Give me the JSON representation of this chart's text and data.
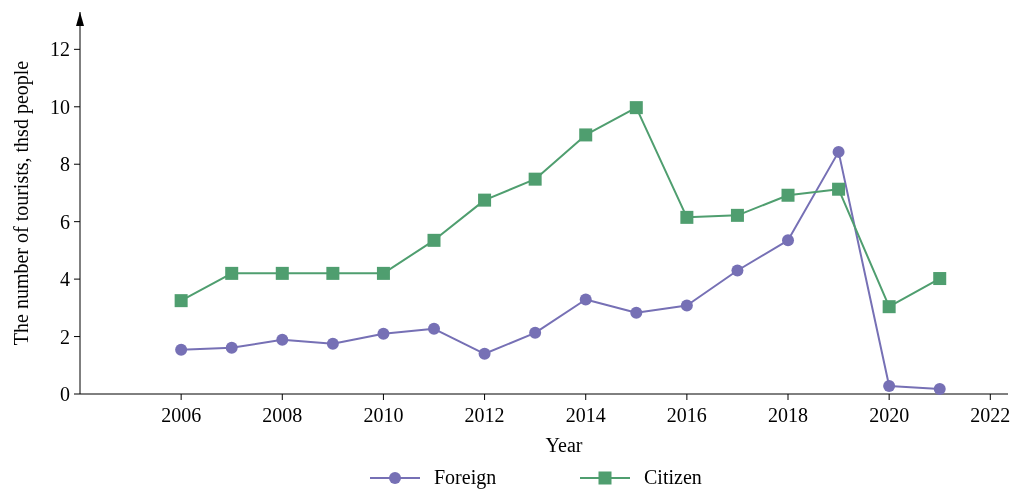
{
  "chart_data": {
    "type": "line",
    "xlabel": "Year",
    "ylabel": "The number of tourists, thsd people",
    "xlim": [
      2004,
      2022.35
    ],
    "xticks": [
      2006,
      2008,
      2010,
      2012,
      2014,
      2016,
      2018,
      2020,
      2022
    ],
    "ylim": [
      0,
      13.3
    ],
    "yticks": [
      0,
      2,
      4,
      6,
      8,
      10,
      12
    ],
    "x": [
      2006,
      2007,
      2008,
      2009,
      2010,
      2011,
      2012,
      2013,
      2014,
      2015,
      2016,
      2017,
      2018,
      2019,
      2020,
      2021
    ],
    "series": [
      {
        "name": "Foreign",
        "color": "#7670b5",
        "marker": "circle",
        "values": [
          1.54,
          1.61,
          1.89,
          1.75,
          2.1,
          2.27,
          1.4,
          2.13,
          3.29,
          2.83,
          3.08,
          4.3,
          5.35,
          8.43,
          0.28,
          0.17
        ]
      },
      {
        "name": "Citizen",
        "color": "#4f9e6f",
        "marker": "square",
        "values": [
          3.25,
          4.2,
          4.2,
          4.2,
          4.2,
          5.35,
          6.75,
          7.48,
          9.02,
          9.97,
          6.15,
          6.22,
          6.92,
          7.13,
          3.04,
          4.02
        ]
      }
    ],
    "grid": false,
    "legend": "bottom",
    "line_style": "solid"
  }
}
